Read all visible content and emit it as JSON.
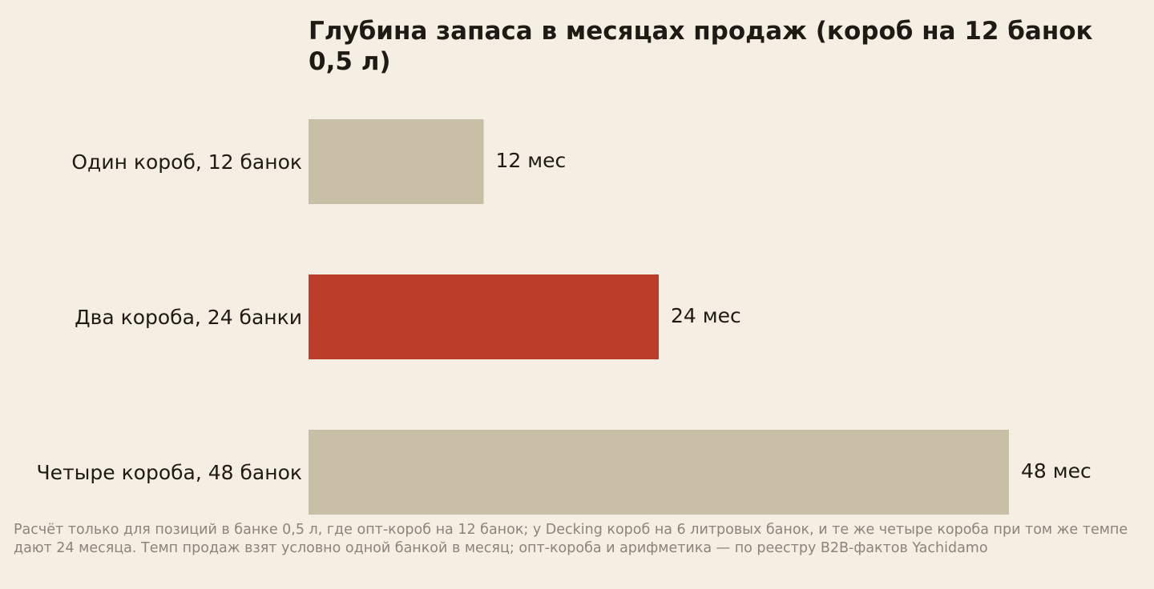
{
  "chart_data": {
    "type": "bar",
    "orientation": "horizontal",
    "title": "Глубина запаса в месяцах продаж (короб на 12 банок 0,5 л)",
    "categories": [
      "Один короб, 12 банок",
      "Два короба, 24 банки",
      "Четыре короба, 48 банок"
    ],
    "values": [
      12,
      24,
      48
    ],
    "value_labels": [
      "12 мес",
      "24 мес",
      "48 мес"
    ],
    "colors": [
      "#c9bfa7",
      "#bb3d28",
      "#c9bfa7"
    ],
    "note": "Расчёт только для позиций в банке 0,5 л, где опт-короб на 12 банок; у Decking короб на 6 литровых банок, и те же четыре короба при том же темпе дают 24 месяца. Темп продаж взят условно одной банкой в месяц; опт-короба и арифметика — по реестру B2B-фактов Yachidamo"
  }
}
